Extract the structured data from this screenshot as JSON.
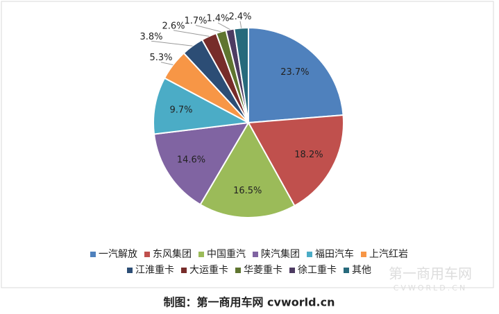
{
  "chart_data": {
    "type": "pie",
    "categories": [
      "一汽解放",
      "东风集团",
      "中国重汽",
      "陕汽集团",
      "福田汽车",
      "上汽红岩",
      "江淮重卡",
      "大运重卡",
      "华菱重卡",
      "徐工重卡",
      "其他"
    ],
    "values": [
      23.7,
      18.2,
      16.5,
      14.6,
      9.7,
      5.3,
      3.8,
      2.6,
      1.7,
      1.4,
      2.4
    ],
    "value_labels": [
      "23.7%",
      "18.2%",
      "16.5%",
      "14.6%",
      "9.7%",
      "5.3%",
      "3.8%",
      "2.6%",
      "1.7%",
      "1.4%",
      "2.4%"
    ],
    "colors": [
      "#4f81bd",
      "#c0504d",
      "#9bbb59",
      "#8064a2",
      "#4bacc6",
      "#f79646",
      "#2c4d75",
      "#772c2a",
      "#5f7530",
      "#4d3b62",
      "#276a7c"
    ],
    "legend": "bottom",
    "caption": "制图：第一商用车网 cvworld.cn",
    "watermark": "第一商用车网",
    "watermark_sub": "CVWORLD.CN"
  }
}
